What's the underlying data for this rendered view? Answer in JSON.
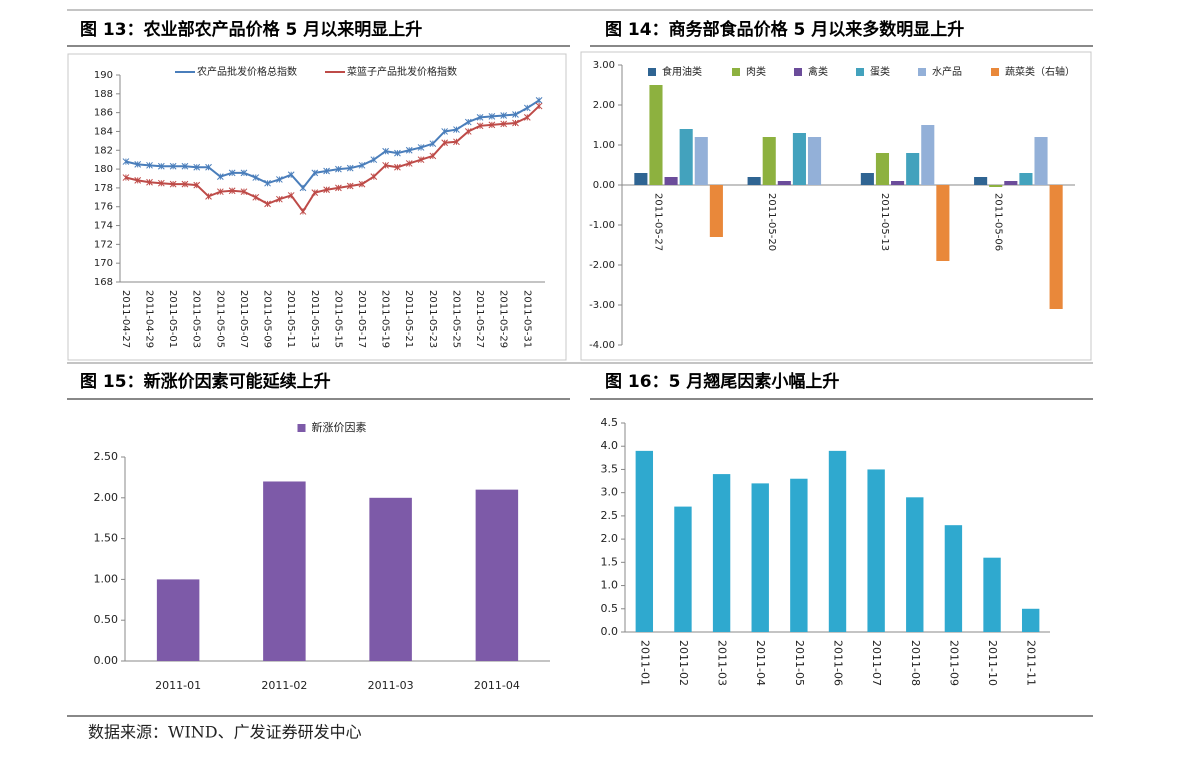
{
  "chart_data": [
    {
      "type": "line",
      "title": "图 13：农业部农产品价格 5 月以来明显上升",
      "categories": [
        "2011-04-27",
        null,
        "2011-04-29",
        null,
        "2011-05-01",
        null,
        "2011-05-03",
        null,
        "2011-05-05",
        null,
        "2011-05-07",
        null,
        "2011-05-09",
        null,
        "2011-05-11",
        null,
        "2011-05-13",
        null,
        "2011-05-15",
        null,
        "2011-05-17",
        null,
        "2011-05-19",
        null,
        "2011-05-21",
        null,
        "2011-05-23",
        null,
        "2011-05-25",
        null,
        "2011-05-27",
        null,
        "2011-05-29",
        null,
        "2011-05-31",
        null
      ],
      "series": [
        {
          "name": "农产品批发价格总指数",
          "color": "#4a7ebb",
          "values": [
            180.8,
            180.5,
            180.4,
            180.3,
            180.3,
            180.3,
            180.2,
            180.2,
            179.2,
            179.6,
            179.6,
            179.1,
            178.5,
            178.9,
            179.4,
            178.0,
            179.6,
            179.8,
            180.0,
            180.1,
            180.4,
            181.0,
            181.9,
            181.7,
            182.0,
            182.3,
            182.7,
            184.0,
            184.2,
            185.0,
            185.5,
            185.6,
            185.7,
            185.8,
            186.5,
            187.3
          ]
        },
        {
          "name": "菜篮子产品批发价格指数",
          "color": "#be4b48",
          "values": [
            179.1,
            178.8,
            178.6,
            178.5,
            178.4,
            178.4,
            178.3,
            177.1,
            177.6,
            177.7,
            177.6,
            177.0,
            176.3,
            176.8,
            177.2,
            175.5,
            177.5,
            177.8,
            178.0,
            178.2,
            178.4,
            179.2,
            180.4,
            180.2,
            180.6,
            181.0,
            181.4,
            182.8,
            182.9,
            184.0,
            184.6,
            184.7,
            184.8,
            184.9,
            185.5,
            186.7
          ]
        }
      ],
      "ylim": [
        168,
        190
      ],
      "yticks": [
        168,
        170,
        172,
        174,
        176,
        178,
        180,
        182,
        184,
        186,
        188,
        190
      ]
    },
    {
      "type": "bar",
      "title": "图 14：商务部食品价格 5 月以来多数明显上升",
      "categories": [
        "2011-05-27",
        "2011-05-20",
        "2011-05-13",
        "2011-05-06"
      ],
      "series": [
        {
          "name": "食用油类",
          "color": "#2f6492",
          "values": [
            0.3,
            0.2,
            0.3,
            0.2
          ]
        },
        {
          "name": "肉类",
          "color": "#8db13f",
          "values": [
            2.5,
            1.2,
            0.8,
            -0.05
          ]
        },
        {
          "name": "禽类",
          "color": "#6b4c9a",
          "values": [
            0.2,
            0.1,
            0.1,
            0.1
          ]
        },
        {
          "name": "蛋类",
          "color": "#43a2bd",
          "values": [
            1.4,
            1.3,
            0.8,
            0.3
          ]
        },
        {
          "name": "水产品",
          "color": "#93b0d8",
          "values": [
            1.2,
            1.2,
            1.5,
            1.2
          ]
        },
        {
          "name": "蔬菜类（右轴）",
          "color": "#e9883a",
          "values": [
            -1.3,
            0,
            -1.9,
            -3.1
          ]
        }
      ],
      "ylim": [
        -4,
        3
      ],
      "yticks": [
        {
          "value": -4,
          "label": "-4.00"
        },
        {
          "value": -3,
          "label": "-3.00"
        },
        {
          "value": -2,
          "label": "-2.00"
        },
        {
          "value": -1,
          "label": "-1.00"
        },
        {
          "value": 0,
          "label": "0.00"
        },
        {
          "value": 1,
          "label": "1.00"
        },
        {
          "value": 2,
          "label": "2.00"
        },
        {
          "value": 3,
          "label": "3.00"
        }
      ]
    },
    {
      "type": "bar",
      "title": "图 15：新涨价因素可能延续上升",
      "categories": [
        "2011-01",
        "2011-02",
        "2011-03",
        "2011-04"
      ],
      "series": [
        {
          "name": "新涨价因素",
          "color": "#7d5aa8",
          "values": [
            1.0,
            2.2,
            2.0,
            2.1
          ]
        }
      ],
      "ylim": [
        0,
        2.5
      ],
      "yticks": [
        {
          "value": 0,
          "label": "0.00"
        },
        {
          "value": 0.5,
          "label": "0.50"
        },
        {
          "value": 1,
          "label": "1.00"
        },
        {
          "value": 1.5,
          "label": "1.50"
        },
        {
          "value": 2,
          "label": "2.00"
        },
        {
          "value": 2.5,
          "label": "2.50"
        }
      ]
    },
    {
      "type": "bar",
      "title": "图 16：5 月翘尾因素小幅上升",
      "categories": [
        "2011-01",
        "2011-02",
        "2011-03",
        "2011-04",
        "2011-05",
        "2011-06",
        "2011-07",
        "2011-08",
        "2011-09",
        "2011-10",
        "2011-11"
      ],
      "values": [
        3.9,
        2.7,
        3.4,
        3.2,
        3.3,
        3.9,
        3.5,
        2.9,
        2.3,
        1.6,
        0.5
      ],
      "color": "#2fa9cf",
      "ylim": [
        0,
        4.5
      ],
      "yticks": [
        {
          "value": 0,
          "label": "0.0"
        },
        0.5,
        {
          "value": 1,
          "label": "1.0"
        },
        1.5,
        {
          "value": 2,
          "label": "2.0"
        },
        2.5,
        {
          "value": 3,
          "label": "3.0"
        },
        3.5,
        {
          "value": 4,
          "label": "4.0"
        },
        4.5
      ]
    }
  ],
  "source": "数据来源：WIND、广发证券研发中心"
}
